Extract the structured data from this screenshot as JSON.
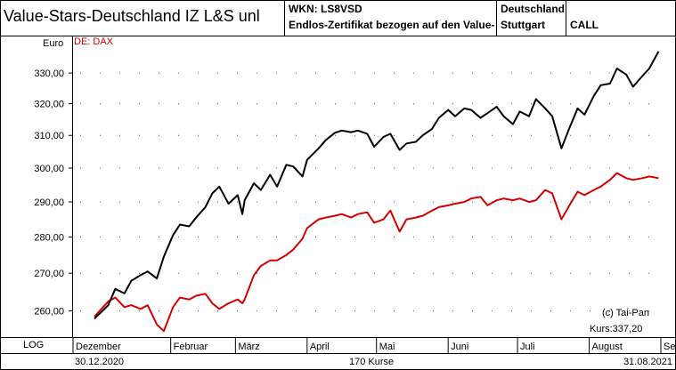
{
  "header": {
    "title": "Value-Stars-Deutschland IZ L&S  unl",
    "wkn": "WKN: LS8VSD",
    "description": "Endlos-Zertifikat bezogen auf den Value-",
    "country": "Deutschland",
    "exchange": "Stuttgart",
    "type": "CALL"
  },
  "unit": "Euro",
  "scale": "LOG",
  "date_start": "30.12.2020",
  "count": "170 Kurse",
  "date_end": "31.08.2021",
  "copyright": "(c) Tai-Pan",
  "last_price": "Kurs:337,20",
  "colors": {
    "main": "#000000",
    "benchmark": "#d40000"
  },
  "chart_data": {
    "type": "line",
    "title": "Value-Stars-Deutschland IZ L&S  unl",
    "ylabel": "Euro",
    "ylim": [
      253.5,
      342
    ],
    "yscale": "log",
    "grid": true,
    "y_ticks": [
      260,
      270,
      280,
      290,
      300,
      310,
      320,
      330
    ],
    "y_tick_labels": [
      "260,00",
      "270,00",
      "280,00",
      "290,00",
      "300,00",
      "310,00",
      "320,00",
      "330,00"
    ],
    "x_range": [
      "2020-12-30",
      "2021-09-01"
    ],
    "month_ticks": [
      {
        "date": "2020-12-01",
        "label": "Dezember"
      },
      {
        "date": "2021-02-01",
        "label": "Februar"
      },
      {
        "date": "2021-03-01",
        "label": "März"
      },
      {
        "date": "2021-04-01",
        "label": "April"
      },
      {
        "date": "2021-05-01",
        "label": "Mai"
      },
      {
        "date": "2021-06-01",
        "label": "Juni"
      },
      {
        "date": "2021-07-01",
        "label": "Juli"
      },
      {
        "date": "2021-08-01",
        "label": "August"
      },
      {
        "date": "2021-09-01",
        "label": "Se"
      }
    ],
    "legend": "top-left",
    "series": [
      {
        "name": "Value-Stars-Deutschland IZ L&S",
        "color": "#000000",
        "points": [
          [
            "2020-12-30",
            258.0
          ],
          [
            "2021-01-05",
            261.5
          ],
          [
            "2021-01-08",
            265.8
          ],
          [
            "2021-01-12",
            264.6
          ],
          [
            "2021-01-15",
            268.0
          ],
          [
            "2021-01-19",
            269.5
          ],
          [
            "2021-01-22",
            270.5
          ],
          [
            "2021-01-26",
            268.6
          ],
          [
            "2021-01-29",
            274.5
          ],
          [
            "2021-02-02",
            280.5
          ],
          [
            "2021-02-05",
            283.5
          ],
          [
            "2021-02-09",
            283.0
          ],
          [
            "2021-02-12",
            285.5
          ],
          [
            "2021-02-16",
            288.5
          ],
          [
            "2021-02-19",
            292.5
          ],
          [
            "2021-02-22",
            294.5
          ],
          [
            "2021-02-26",
            289.5
          ],
          [
            "2021-03-02",
            292.0
          ],
          [
            "2021-03-04",
            286.5
          ],
          [
            "2021-03-05",
            290.5
          ],
          [
            "2021-03-09",
            295.5
          ],
          [
            "2021-03-12",
            293.5
          ],
          [
            "2021-03-16",
            298.0
          ],
          [
            "2021-03-19",
            294.5
          ],
          [
            "2021-03-23",
            301.0
          ],
          [
            "2021-03-26",
            300.5
          ],
          [
            "2021-03-30",
            297.5
          ],
          [
            "2021-04-01",
            302.5
          ],
          [
            "2021-04-06",
            306.0
          ],
          [
            "2021-04-09",
            308.5
          ],
          [
            "2021-04-13",
            310.8
          ],
          [
            "2021-04-16",
            311.5
          ],
          [
            "2021-04-20",
            311.0
          ],
          [
            "2021-04-23",
            311.5
          ],
          [
            "2021-04-27",
            310.5
          ],
          [
            "2021-04-30",
            306.5
          ],
          [
            "2021-05-04",
            309.5
          ],
          [
            "2021-05-07",
            310.5
          ],
          [
            "2021-05-11",
            305.5
          ],
          [
            "2021-05-14",
            307.5
          ],
          [
            "2021-05-18",
            308.0
          ],
          [
            "2021-05-21",
            310.0
          ],
          [
            "2021-05-25",
            312.0
          ],
          [
            "2021-05-28",
            315.5
          ],
          [
            "2021-06-01",
            318.0
          ],
          [
            "2021-06-04",
            316.0
          ],
          [
            "2021-06-08",
            318.5
          ],
          [
            "2021-06-11",
            318.0
          ],
          [
            "2021-06-15",
            315.5
          ],
          [
            "2021-06-18",
            317.0
          ],
          [
            "2021-06-22",
            319.0
          ],
          [
            "2021-06-25",
            316.0
          ],
          [
            "2021-06-29",
            313.5
          ],
          [
            "2021-07-02",
            317.5
          ],
          [
            "2021-07-06",
            316.0
          ],
          [
            "2021-07-09",
            321.5
          ],
          [
            "2021-07-13",
            318.5
          ],
          [
            "2021-07-16",
            316.0
          ],
          [
            "2021-07-20",
            306.0
          ],
          [
            "2021-07-23",
            311.5
          ],
          [
            "2021-07-27",
            318.5
          ],
          [
            "2021-07-30",
            316.5
          ],
          [
            "2021-08-03",
            322.5
          ],
          [
            "2021-08-06",
            326.0
          ],
          [
            "2021-08-10",
            326.5
          ],
          [
            "2021-08-13",
            331.5
          ],
          [
            "2021-08-17",
            329.5
          ],
          [
            "2021-08-20",
            325.5
          ],
          [
            "2021-08-24",
            329.0
          ],
          [
            "2021-08-27",
            331.5
          ],
          [
            "2021-08-31",
            337.2
          ]
        ]
      },
      {
        "name": "DE: DAX",
        "color": "#d40000",
        "points": [
          [
            "2020-12-30",
            258.5
          ],
          [
            "2021-01-05",
            262.5
          ],
          [
            "2021-01-08",
            263.5
          ],
          [
            "2021-01-12",
            261.0
          ],
          [
            "2021-01-15",
            261.5
          ],
          [
            "2021-01-19",
            260.5
          ],
          [
            "2021-01-22",
            261.5
          ],
          [
            "2021-01-26",
            256.5
          ],
          [
            "2021-01-29",
            254.8
          ],
          [
            "2021-02-02",
            261.0
          ],
          [
            "2021-02-05",
            263.5
          ],
          [
            "2021-02-09",
            263.0
          ],
          [
            "2021-02-12",
            264.0
          ],
          [
            "2021-02-16",
            264.5
          ],
          [
            "2021-02-19",
            262.0
          ],
          [
            "2021-02-22",
            260.5
          ],
          [
            "2021-02-26",
            262.0
          ],
          [
            "2021-03-02",
            263.0
          ],
          [
            "2021-03-04",
            262.0
          ],
          [
            "2021-03-05",
            263.0
          ],
          [
            "2021-03-09",
            269.5
          ],
          [
            "2021-03-12",
            272.0
          ],
          [
            "2021-03-16",
            273.5
          ],
          [
            "2021-03-19",
            273.5
          ],
          [
            "2021-03-23",
            275.0
          ],
          [
            "2021-03-26",
            276.5
          ],
          [
            "2021-03-30",
            279.5
          ],
          [
            "2021-04-01",
            282.5
          ],
          [
            "2021-04-06",
            285.0
          ],
          [
            "2021-04-09",
            285.5
          ],
          [
            "2021-04-13",
            286.0
          ],
          [
            "2021-04-16",
            286.5
          ],
          [
            "2021-04-20",
            285.5
          ],
          [
            "2021-04-23",
            286.5
          ],
          [
            "2021-04-27",
            287.0
          ],
          [
            "2021-04-30",
            284.0
          ],
          [
            "2021-05-04",
            285.0
          ],
          [
            "2021-05-07",
            287.5
          ],
          [
            "2021-05-11",
            281.5
          ],
          [
            "2021-05-14",
            285.0
          ],
          [
            "2021-05-18",
            285.5
          ],
          [
            "2021-05-21",
            286.0
          ],
          [
            "2021-05-25",
            287.5
          ],
          [
            "2021-05-28",
            288.5
          ],
          [
            "2021-06-01",
            289.0
          ],
          [
            "2021-06-04",
            289.5
          ],
          [
            "2021-06-08",
            290.0
          ],
          [
            "2021-06-11",
            291.0
          ],
          [
            "2021-06-15",
            291.5
          ],
          [
            "2021-06-18",
            289.0
          ],
          [
            "2021-06-22",
            290.5
          ],
          [
            "2021-06-25",
            291.0
          ],
          [
            "2021-06-29",
            290.5
          ],
          [
            "2021-07-02",
            291.0
          ],
          [
            "2021-07-06",
            290.0
          ],
          [
            "2021-07-09",
            290.5
          ],
          [
            "2021-07-13",
            293.5
          ],
          [
            "2021-07-16",
            292.5
          ],
          [
            "2021-07-20",
            285.0
          ],
          [
            "2021-07-23",
            288.5
          ],
          [
            "2021-07-27",
            293.0
          ],
          [
            "2021-07-30",
            292.0
          ],
          [
            "2021-08-03",
            293.5
          ],
          [
            "2021-08-06",
            294.5
          ],
          [
            "2021-08-10",
            296.5
          ],
          [
            "2021-08-13",
            298.5
          ],
          [
            "2021-08-17",
            297.0
          ],
          [
            "2021-08-20",
            296.5
          ],
          [
            "2021-08-24",
            297.0
          ],
          [
            "2021-08-27",
            297.5
          ],
          [
            "2021-08-31",
            297.0
          ]
        ]
      }
    ]
  }
}
